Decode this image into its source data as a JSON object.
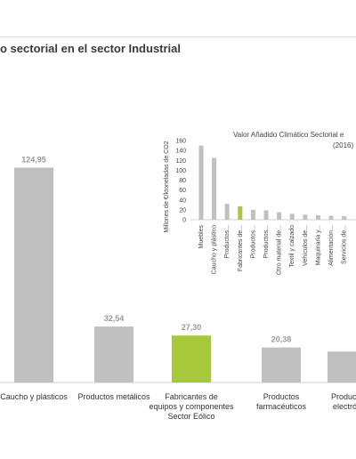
{
  "page": {
    "title": "o sectorial en el sector Industrial"
  },
  "chart_data": [
    {
      "type": "bar",
      "categories": [
        [
          "Caucho y plásticos"
        ],
        [
          "Productos metálicos"
        ],
        [
          "Fabricantes de",
          "equipos y componentes",
          "Sector Eólico"
        ],
        [
          "Productos",
          "farmacéuticos"
        ],
        [
          "Producto",
          "electrón"
        ]
      ],
      "values": [
        124.95,
        32.54,
        27.3,
        20.38,
        18.0
      ],
      "value_labels": [
        "124,95",
        "32,54",
        "27,30",
        "20,38",
        ""
      ],
      "highlight_index": 2,
      "colors": {
        "default": "#c0c0c0",
        "highlight": "#a6c83a",
        "label_default": "#9a9a9a",
        "label_highlight": "#a6c83a"
      },
      "ylim": [
        0,
        150
      ],
      "grid": false
    },
    {
      "type": "bar",
      "title": "Valor Añadido Climático Sectorial e",
      "subtitle": "(2016)",
      "ylabel": "Millones de €/ktoneladas de CO2",
      "yticks": [
        "160",
        "140",
        "120",
        "100",
        "80",
        "60",
        "40",
        "20",
        "0"
      ],
      "ylim": [
        0,
        160
      ],
      "categories": [
        "Muebles",
        "Caucho y plástico",
        "Productos...",
        "Fabricantes de...",
        "Productos...",
        "Productos...",
        "Otro material de...",
        "Textil y calzado",
        "Vehículos de...",
        "Maquinaria y...",
        "Alimentación...",
        "Servicios de..."
      ],
      "values": [
        150,
        125,
        32,
        27,
        20,
        19,
        15,
        12,
        10,
        9,
        8,
        7
      ],
      "highlight_index": 3,
      "colors": {
        "default": "#c0c0c0",
        "highlight": "#a6c83a"
      }
    }
  ]
}
